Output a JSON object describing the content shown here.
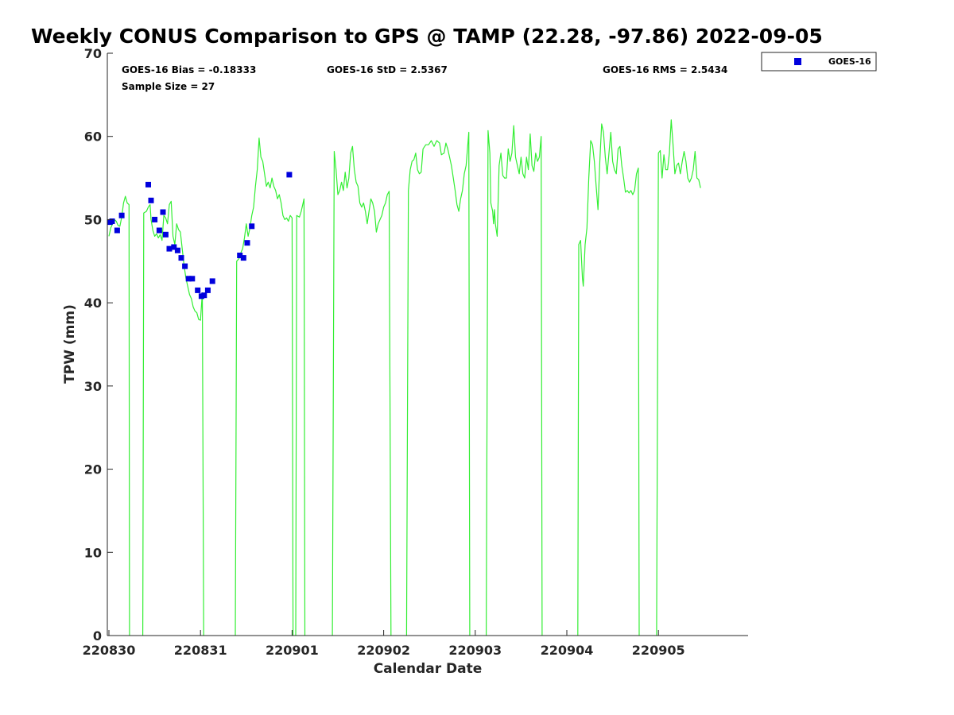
{
  "chart_data": {
    "type": "line",
    "title": "Weekly CONUS Comparison to GPS @ TAMP (22.28, -97.86) 2022-09-05",
    "xlabel": "Calendar Date",
    "ylabel": "TPW (mm)",
    "xlim": [
      0,
      7
    ],
    "ylim": [
      0,
      70
    ],
    "yticks": [
      0,
      10,
      20,
      30,
      40,
      50,
      60,
      70
    ],
    "xticks": [
      {
        "x": 0,
        "label": "220830"
      },
      {
        "x": 1,
        "label": "220831"
      },
      {
        "x": 2,
        "label": "220901"
      },
      {
        "x": 3,
        "label": "220902"
      },
      {
        "x": 4,
        "label": "220903"
      },
      {
        "x": 5,
        "label": "220904"
      },
      {
        "x": 6,
        "label": "220905"
      }
    ],
    "grid": false,
    "legend_position": "top-right",
    "legend": [
      {
        "label": "GOES-16",
        "color": "#0000dd",
        "marker": "square"
      }
    ],
    "stats": {
      "bias": "GOES-16 Bias = -0.18333",
      "std": "GOES-16 StD = 2.5367",
      "rms": "GOES-16 RMS = 2.5434",
      "sample": "Sample Size = 27"
    },
    "series": [
      {
        "color": "#33ee33",
        "style": "line",
        "segments": [
          [
            [
              0.0,
              48.0
            ],
            [
              0.02,
              49.0
            ],
            [
              0.04,
              49.5
            ],
            [
              0.06,
              50.0
            ],
            [
              0.08,
              49.8
            ],
            [
              0.1,
              49.3
            ],
            [
              0.12,
              49.2
            ],
            [
              0.14,
              50.3
            ],
            [
              0.16,
              52.0
            ],
            [
              0.18,
              52.8
            ],
            [
              0.2,
              52.0
            ],
            [
              0.22,
              51.8
            ],
            [
              0.225,
              0
            ]
          ],
          [
            [
              0.37,
              0
            ],
            [
              0.38,
              50.8
            ],
            [
              0.41,
              51.0
            ],
            [
              0.43,
              51.5
            ],
            [
              0.45,
              51.8
            ],
            [
              0.46,
              50.0
            ],
            [
              0.48,
              48.7
            ],
            [
              0.5,
              48.0
            ],
            [
              0.52,
              48.3
            ],
            [
              0.54,
              47.8
            ],
            [
              0.56,
              48.2
            ],
            [
              0.58,
              47.5
            ],
            [
              0.6,
              50.5
            ],
            [
              0.62,
              50.2
            ],
            [
              0.64,
              49.5
            ],
            [
              0.66,
              51.8
            ],
            [
              0.68,
              52.2
            ],
            [
              0.7,
              48.0
            ],
            [
              0.72,
              47.0
            ],
            [
              0.74,
              49.5
            ],
            [
              0.76,
              48.8
            ],
            [
              0.78,
              48.5
            ],
            [
              0.8,
              46.5
            ],
            [
              0.82,
              44.5
            ],
            [
              0.84,
              43.0
            ],
            [
              0.86,
              42.0
            ],
            [
              0.88,
              41.0
            ],
            [
              0.9,
              40.5
            ],
            [
              0.92,
              39.5
            ],
            [
              0.94,
              39.0
            ],
            [
              0.96,
              38.8
            ],
            [
              0.98,
              38.0
            ],
            [
              1.0,
              37.9
            ],
            [
              1.02,
              41.2
            ],
            [
              1.035,
              0
            ]
          ],
          [
            [
              1.38,
              0
            ],
            [
              1.395,
              45.0
            ],
            [
              1.42,
              45.3
            ],
            [
              1.44,
              46.0
            ],
            [
              1.46,
              46.5
            ],
            [
              1.48,
              47.8
            ],
            [
              1.5,
              49.5
            ],
            [
              1.52,
              48.0
            ],
            [
              1.54,
              49.0
            ],
            [
              1.56,
              50.5
            ],
            [
              1.58,
              51.5
            ],
            [
              1.6,
              54.0
            ],
            [
              1.62,
              56.0
            ],
            [
              1.64,
              59.8
            ],
            [
              1.66,
              57.5
            ],
            [
              1.68,
              57.0
            ],
            [
              1.7,
              55.5
            ],
            [
              1.72,
              54.0
            ],
            [
              1.74,
              54.5
            ],
            [
              1.76,
              53.8
            ],
            [
              1.78,
              55.0
            ],
            [
              1.8,
              54.0
            ],
            [
              1.82,
              53.5
            ],
            [
              1.84,
              52.5
            ],
            [
              1.86,
              53.0
            ],
            [
              1.88,
              52.0
            ],
            [
              1.9,
              50.5
            ],
            [
              1.92,
              50.0
            ],
            [
              1.94,
              50.2
            ],
            [
              1.96,
              49.8
            ],
            [
              1.98,
              50.5
            ],
            [
              2.0,
              50.2
            ],
            [
              2.01,
              0
            ]
          ],
          [
            [
              2.04,
              0
            ],
            [
              2.05,
              50.5
            ],
            [
              2.08,
              50.3
            ],
            [
              2.1,
              51.0
            ],
            [
              2.13,
              52.5
            ],
            [
              2.14,
              0
            ]
          ],
          [
            [
              2.44,
              0
            ],
            [
              2.46,
              58.2
            ],
            [
              2.48,
              56.0
            ],
            [
              2.5,
              53.0
            ],
            [
              2.52,
              53.5
            ],
            [
              2.54,
              54.5
            ],
            [
              2.56,
              53.5
            ],
            [
              2.58,
              55.7
            ],
            [
              2.6,
              53.8
            ],
            [
              2.62,
              55.0
            ],
            [
              2.64,
              58.0
            ],
            [
              2.66,
              58.8
            ],
            [
              2.68,
              56.0
            ],
            [
              2.7,
              54.5
            ],
            [
              2.72,
              54.0
            ],
            [
              2.74,
              52.0
            ],
            [
              2.76,
              51.5
            ],
            [
              2.78,
              52.0
            ],
            [
              2.8,
              51.0
            ],
            [
              2.82,
              49.5
            ],
            [
              2.84,
              51.0
            ],
            [
              2.86,
              52.5
            ],
            [
              2.88,
              52.0
            ],
            [
              2.9,
              51.0
            ],
            [
              2.92,
              48.5
            ],
            [
              2.94,
              49.5
            ],
            [
              2.96,
              50.0
            ],
            [
              2.98,
              50.5
            ],
            [
              3.0,
              51.5
            ],
            [
              3.02,
              52.0
            ],
            [
              3.04,
              53.0
            ],
            [
              3.06,
              53.4
            ],
            [
              3.08,
              0
            ]
          ],
          [
            [
              3.25,
              0
            ],
            [
              3.27,
              53.5
            ],
            [
              3.29,
              56.0
            ],
            [
              3.31,
              57.0
            ],
            [
              3.33,
              57.2
            ],
            [
              3.35,
              58.0
            ],
            [
              3.37,
              56.0
            ],
            [
              3.39,
              55.5
            ],
            [
              3.41,
              55.7
            ],
            [
              3.43,
              58.5
            ],
            [
              3.46,
              59.0
            ],
            [
              3.49,
              59.0
            ],
            [
              3.52,
              59.5
            ],
            [
              3.55,
              58.8
            ],
            [
              3.58,
              59.5
            ],
            [
              3.61,
              59.2
            ],
            [
              3.63,
              57.8
            ],
            [
              3.66,
              58.0
            ],
            [
              3.68,
              59.2
            ],
            [
              3.7,
              58.5
            ],
            [
              3.72,
              57.5
            ],
            [
              3.74,
              56.5
            ],
            [
              3.76,
              55.0
            ],
            [
              3.78,
              53.5
            ],
            [
              3.8,
              51.8
            ],
            [
              3.82,
              51.0
            ],
            [
              3.84,
              52.5
            ],
            [
              3.86,
              53.5
            ],
            [
              3.88,
              55.5
            ],
            [
              3.9,
              56.5
            ],
            [
              3.93,
              60.5
            ],
            [
              3.94,
              0
            ]
          ],
          [
            [
              4.12,
              0
            ],
            [
              4.14,
              60.7
            ],
            [
              4.16,
              58.0
            ],
            [
              4.17,
              52.0
            ],
            [
              4.19,
              51.0
            ],
            [
              4.2,
              49.5
            ],
            [
              4.21,
              51.2
            ],
            [
              4.22,
              49.5
            ],
            [
              4.24,
              48.0
            ],
            [
              4.26,
              56.5
            ],
            [
              4.28,
              58.0
            ],
            [
              4.3,
              55.3
            ],
            [
              4.32,
              55.0
            ],
            [
              4.34,
              55.0
            ],
            [
              4.36,
              58.5
            ],
            [
              4.38,
              57.0
            ],
            [
              4.4,
              58.0
            ],
            [
              4.42,
              61.3
            ],
            [
              4.44,
              57.5
            ],
            [
              4.46,
              56.5
            ],
            [
              4.48,
              55.5
            ],
            [
              4.5,
              57.5
            ],
            [
              4.52,
              55.5
            ],
            [
              4.54,
              55.0
            ],
            [
              4.56,
              57.5
            ],
            [
              4.58,
              56.0
            ],
            [
              4.6,
              60.3
            ],
            [
              4.62,
              56.5
            ],
            [
              4.64,
              55.8
            ],
            [
              4.66,
              58.0
            ],
            [
              4.68,
              57.0
            ],
            [
              4.7,
              57.5
            ],
            [
              4.72,
              60.0
            ],
            [
              4.73,
              0
            ]
          ],
          [
            [
              5.12,
              0
            ],
            [
              5.13,
              47.0
            ],
            [
              5.15,
              47.5
            ],
            [
              5.17,
              43.0
            ],
            [
              5.18,
              42.0
            ],
            [
              5.2,
              47.0
            ],
            [
              5.22,
              49.0
            ],
            [
              5.24,
              55.0
            ],
            [
              5.26,
              59.5
            ],
            [
              5.28,
              59.0
            ],
            [
              5.3,
              57.0
            ],
            [
              5.32,
              54.0
            ],
            [
              5.34,
              51.2
            ],
            [
              5.36,
              57.0
            ],
            [
              5.38,
              61.5
            ],
            [
              5.4,
              60.5
            ],
            [
              5.42,
              57.5
            ],
            [
              5.44,
              55.5
            ],
            [
              5.46,
              58.0
            ],
            [
              5.48,
              60.5
            ],
            [
              5.5,
              57.0
            ],
            [
              5.52,
              56.0
            ],
            [
              5.54,
              55.5
            ],
            [
              5.56,
              58.5
            ],
            [
              5.58,
              58.8
            ],
            [
              5.6,
              56.5
            ],
            [
              5.62,
              55.0
            ],
            [
              5.64,
              53.3
            ],
            [
              5.66,
              53.5
            ],
            [
              5.68,
              53.2
            ],
            [
              5.7,
              53.5
            ],
            [
              5.72,
              53.0
            ],
            [
              5.74,
              53.5
            ],
            [
              5.76,
              55.5
            ],
            [
              5.78,
              56.2
            ],
            [
              5.79,
              0
            ]
          ],
          [
            [
              5.98,
              0
            ],
            [
              6.0,
              58.0
            ],
            [
              6.02,
              58.3
            ],
            [
              6.04,
              55.0
            ],
            [
              6.06,
              57.8
            ],
            [
              6.08,
              56.0
            ],
            [
              6.1,
              56.0
            ],
            [
              6.12,
              58.0
            ],
            [
              6.14,
              62.0
            ],
            [
              6.16,
              59.0
            ],
            [
              6.18,
              55.5
            ],
            [
              6.2,
              56.5
            ],
            [
              6.22,
              56.8
            ],
            [
              6.24,
              55.5
            ],
            [
              6.26,
              57.0
            ],
            [
              6.28,
              58.2
            ],
            [
              6.3,
              57.0
            ],
            [
              6.32,
              55.0
            ],
            [
              6.34,
              54.5
            ],
            [
              6.36,
              55.0
            ],
            [
              6.38,
              56.0
            ],
            [
              6.4,
              58.2
            ],
            [
              6.42,
              55.0
            ],
            [
              6.44,
              54.8
            ],
            [
              6.46,
              53.8
            ]
          ]
        ]
      },
      {
        "name": "GOES-16",
        "color": "#0000dd",
        "style": "marker-square",
        "points": [
          [
            0.01,
            49.7
          ],
          [
            0.035,
            49.8
          ],
          [
            0.09,
            48.7
          ],
          [
            0.14,
            50.5
          ],
          [
            0.43,
            54.2
          ],
          [
            0.46,
            52.3
          ],
          [
            0.5,
            50.0
          ],
          [
            0.55,
            48.7
          ],
          [
            0.59,
            50.9
          ],
          [
            0.62,
            48.2
          ],
          [
            0.66,
            46.5
          ],
          [
            0.71,
            46.7
          ],
          [
            0.75,
            46.3
          ],
          [
            0.79,
            45.4
          ],
          [
            0.83,
            44.4
          ],
          [
            0.87,
            42.9
          ],
          [
            0.91,
            42.9
          ],
          [
            0.97,
            41.5
          ],
          [
            1.01,
            40.8
          ],
          [
            1.04,
            40.9
          ],
          [
            1.08,
            41.5
          ],
          [
            1.13,
            42.6
          ],
          [
            1.43,
            45.7
          ],
          [
            1.47,
            45.4
          ],
          [
            1.51,
            47.2
          ],
          [
            1.56,
            49.2
          ],
          [
            1.97,
            55.4
          ]
        ]
      }
    ]
  }
}
